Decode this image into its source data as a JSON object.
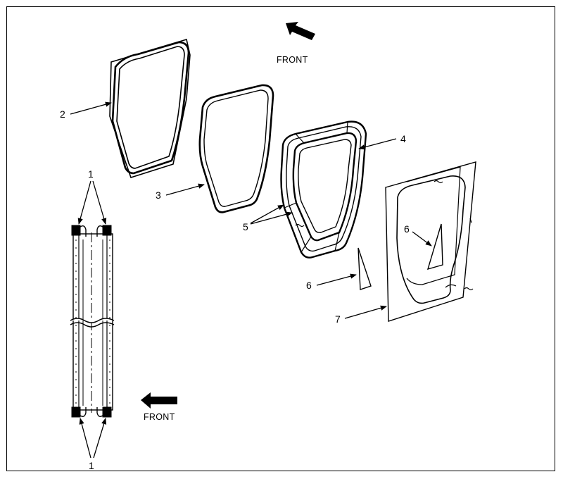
{
  "diagram": {
    "front_label_top": "FRONT",
    "front_label_bottom": "FRONT",
    "callouts": {
      "c1_top": "1",
      "c1_bottom": "1",
      "c2": "2",
      "c3": "3",
      "c4": "4",
      "c5": "5",
      "c6_outer": "6",
      "c6_inner": "6",
      "c7": "7"
    }
  }
}
